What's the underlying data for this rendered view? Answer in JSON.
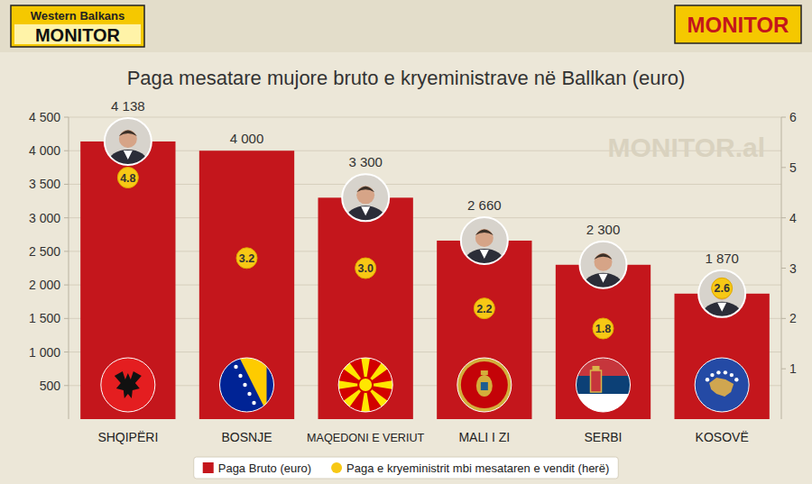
{
  "header": {
    "logo_left_top": "Western Balkans",
    "logo_left_main": "MONITOR",
    "logo_right": "MONITOR",
    "watermark": "MONITOR.al"
  },
  "chart_data": {
    "type": "bar",
    "title": "Paga mesatare mujore bruto e kryeministrave në Ballkan (euro)",
    "categories": [
      "SHQIPËRI",
      "BOSNJE",
      "MAQEDONI E VERIUT",
      "MALI I ZI",
      "SERBI",
      "KOSOVË"
    ],
    "series": [
      {
        "name": "Paga Bruto (euro)",
        "type": "bar",
        "color": "#c4161c",
        "values": [
          4138,
          4000,
          3300,
          2660,
          2300,
          1870
        ],
        "value_labels": [
          "4 138",
          "4 000",
          "3 300",
          "2 660",
          "2 300",
          "1 870"
        ],
        "data_labels": true
      },
      {
        "name": "Paga e kryeministrit mbi mesataren e vendit (herë)",
        "type": "scatter",
        "marker": "circle",
        "axis": "y2",
        "color": "#f7c815",
        "values": [
          4.8,
          3.2,
          3.0,
          2.2,
          1.8,
          2.6
        ],
        "value_labels": [
          "4.8",
          "3.2",
          "3.0",
          "2.2",
          "1.8",
          "2.6"
        ],
        "data_labels": true
      }
    ],
    "ylim": [
      0,
      4500
    ],
    "yticks": [
      500,
      {
        "value": 1000,
        "label": "1 000"
      },
      {
        "value": 1500,
        "label": "1 500"
      },
      {
        "value": 2000,
        "label": "2 000"
      },
      {
        "value": 2500,
        "label": "2 500"
      },
      {
        "value": 3000,
        "label": "3 000"
      },
      {
        "value": 3500,
        "label": "3 500"
      },
      {
        "value": 4000,
        "label": "4 000"
      },
      {
        "value": 4500,
        "label": "4 500"
      }
    ],
    "y2lim": [
      0,
      6
    ],
    "y2ticks": [
      1,
      2,
      3,
      4,
      5,
      6
    ],
    "grid": true,
    "legend": "bottom"
  }
}
